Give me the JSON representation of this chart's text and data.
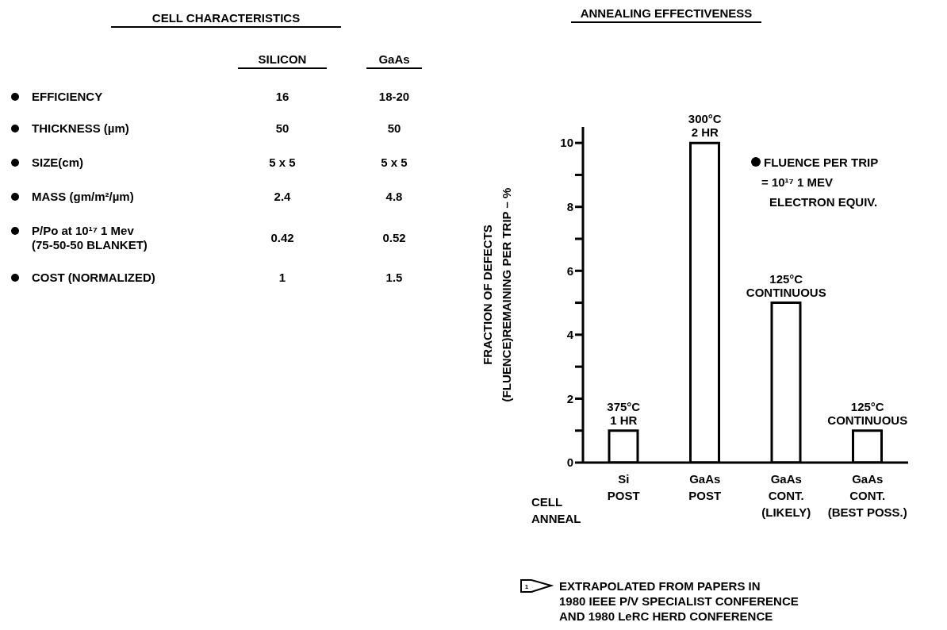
{
  "chart_data": [
    {
      "type": "other",
      "title": "CELL CHARACTERISTICS",
      "annotations": [
        "SILICON",
        "GaAs",
        "EFFICIENCY",
        "16",
        "18-20",
        "THICKNESS (µm)",
        "50",
        "50",
        "SIZE(cm)",
        "5 x 5",
        "5 x 5",
        "MASS (gm/m²/µm)",
        "2.4",
        "4.8",
        "P/Po at 10¹⁷ 1 Mev\n(75-50-50 BLANKET)",
        "0.42",
        "0.52",
        "COST (NORMALIZED)",
        "1",
        "1.5"
      ]
    },
    {
      "type": "bar",
      "title": "ANNEALING EFFECTIVENESS",
      "xlabel": "CELL\nANNEAL",
      "ylabel": "FRACTION OF DEFECTS\n(FLUENCE)REMAINING PER TRIP – %",
      "categories": [
        "Si\nPOST",
        "GaAs\nPOST",
        "GaAs\nCONT.\n(LIKELY)",
        "GaAs\nCONT.\n(BEST POSS.)"
      ],
      "values": [
        1,
        10,
        5,
        1
      ],
      "color": "#ffffff",
      "ylim": [
        0,
        10.5
      ],
      "yticks": [
        0,
        {
          "value": 1,
          "label": null
        },
        2,
        {
          "value": 3,
          "label": null
        },
        4,
        {
          "value": 5,
          "label": null
        },
        6,
        {
          "value": 7,
          "label": null
        },
        8,
        {
          "value": 9,
          "label": null
        },
        10
      ],
      "grid": false,
      "legend": false,
      "annotations": [
        {
          "text": "375°C\n1 HR",
          "x": "Si\nPOST",
          "y": 1
        },
        {
          "text": "300°C\n2 HR",
          "x": "GaAs\nPOST",
          "y": 10
        },
        {
          "text": "125°C\nCONTINUOUS",
          "x": "GaAs\nCONT.\n(LIKELY)",
          "y": 5
        },
        {
          "text": "125°C\nCONTINUOUS",
          "x": "GaAs\nCONT.\n(BEST POSS.)",
          "y": 1
        },
        "FLUENCE PER TRIP\n= 10¹⁷ 1 MEV\nELECTRON EQUIV.",
        "1",
        "EXTRAPOLATED FROM PAPERS IN\n1980 IEEE P/V SPECIALIST CONFERENCE\nAND 1980 LeRC HERD CONFERENCE"
      ]
    }
  ]
}
